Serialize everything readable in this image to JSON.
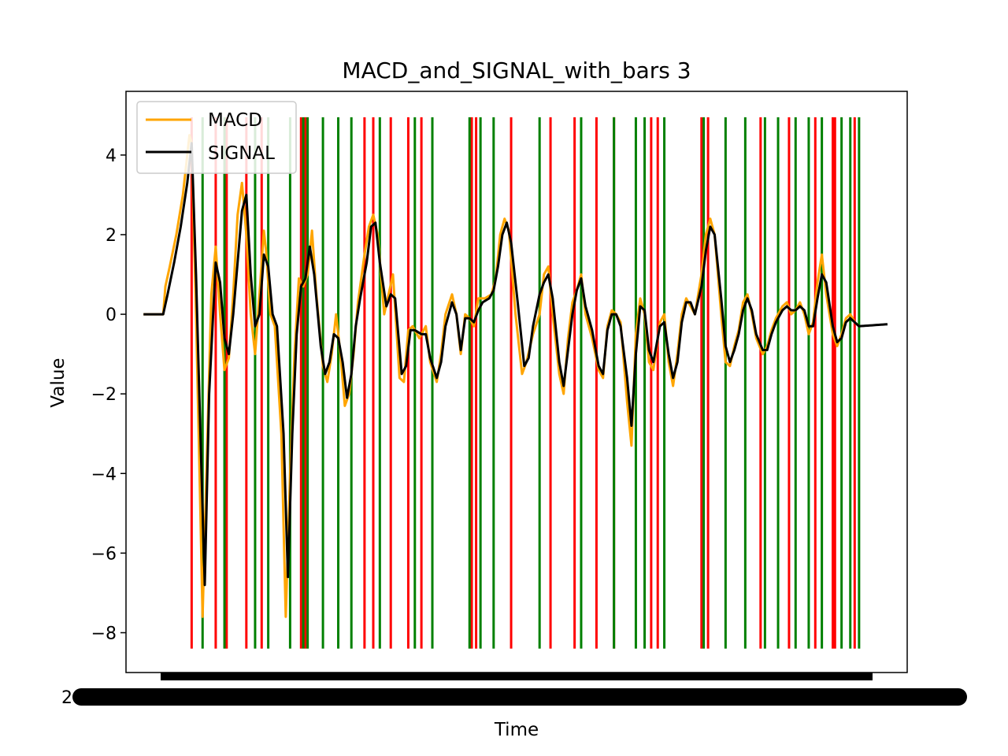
{
  "chart_data": {
    "type": "line",
    "title": "MACD_and_SIGNAL_with_bars 3",
    "xlabel": "Time",
    "ylabel": "Value",
    "ylim": [
      -9.0,
      5.6
    ],
    "xlim": [
      -8,
      349
    ],
    "yticks": [
      4,
      2,
      0,
      -2,
      -4,
      -6,
      -8
    ],
    "ytick_labels": [
      "4",
      "2",
      "0",
      "−2",
      "−4",
      "−6",
      "−8"
    ],
    "x_tick_labels_overlapping": true,
    "x_tick_stub": "2",
    "grid": false,
    "legend": {
      "position": "top-left",
      "entries": [
        {
          "label": "MACD",
          "color": "#FFA500"
        },
        {
          "label": "SIGNAL",
          "color": "#000000"
        }
      ]
    },
    "n_points": 341,
    "series": [
      {
        "name": "MACD",
        "color": "#FFA500",
        "keypoints": [
          [
            0,
            0
          ],
          [
            9,
            0
          ],
          [
            10,
            0.7
          ],
          [
            12,
            1.2
          ],
          [
            15,
            2
          ],
          [
            18,
            3
          ],
          [
            21,
            4.5
          ],
          [
            22,
            4.3
          ],
          [
            24,
            0
          ],
          [
            26,
            -5
          ],
          [
            27,
            -7.6
          ],
          [
            29,
            -3.5
          ],
          [
            31,
            0.5
          ],
          [
            33,
            1.7
          ],
          [
            35,
            0
          ],
          [
            37,
            -1.4
          ],
          [
            39,
            -1.1
          ],
          [
            41,
            0.5
          ],
          [
            43,
            2.5
          ],
          [
            45,
            3.3
          ],
          [
            47,
            2
          ],
          [
            49,
            0
          ],
          [
            51,
            -1
          ],
          [
            53,
            0.5
          ],
          [
            55,
            2.1
          ],
          [
            56,
            1.6
          ],
          [
            58,
            0
          ],
          [
            60,
            -0.3
          ],
          [
            63,
            -3
          ],
          [
            65,
            -7.6
          ],
          [
            67,
            -4
          ],
          [
            69,
            -1
          ],
          [
            71,
            0.9
          ],
          [
            73,
            0.7
          ],
          [
            75,
            1
          ],
          [
            77,
            2.1
          ],
          [
            79,
            0.5
          ],
          [
            82,
            -1.3
          ],
          [
            84,
            -1.7
          ],
          [
            86,
            -1
          ],
          [
            88,
            0
          ],
          [
            90,
            -1
          ],
          [
            92,
            -2.3
          ],
          [
            94,
            -2
          ],
          [
            96,
            -1
          ],
          [
            98,
            0.3
          ],
          [
            101,
            1.5
          ],
          [
            103,
            2.2
          ],
          [
            105,
            2.5
          ],
          [
            107,
            2
          ],
          [
            110,
            0
          ],
          [
            112,
            0.5
          ],
          [
            114,
            1
          ],
          [
            117,
            -1.6
          ],
          [
            119,
            -1.7
          ],
          [
            121,
            -0.4
          ],
          [
            123,
            -0.3
          ],
          [
            126,
            -0.6
          ],
          [
            129,
            -0.3
          ],
          [
            131,
            -1.2
          ],
          [
            134,
            -1.7
          ],
          [
            136,
            -1
          ],
          [
            138,
            0
          ],
          [
            141,
            0.5
          ],
          [
            143,
            0
          ],
          [
            145,
            -1
          ],
          [
            147,
            0
          ],
          [
            149,
            -0.1
          ],
          [
            151,
            -0.3
          ],
          [
            153,
            0.4
          ],
          [
            156,
            0.4
          ],
          [
            159,
            0.5
          ],
          [
            161,
            0.9
          ],
          [
            163,
            2
          ],
          [
            165,
            2.4
          ],
          [
            167,
            2.1
          ],
          [
            170,
            0
          ],
          [
            173,
            -1.5
          ],
          [
            175,
            -1.2
          ],
          [
            178,
            -0.5
          ],
          [
            181,
            0
          ],
          [
            183,
            1
          ],
          [
            185,
            1.2
          ],
          [
            187,
            0
          ],
          [
            190,
            -1.5
          ],
          [
            192,
            -2
          ],
          [
            194,
            -0.6
          ],
          [
            196,
            0.3
          ],
          [
            198,
            0.6
          ],
          [
            200,
            1
          ],
          [
            202,
            0
          ],
          [
            205,
            -0.6
          ],
          [
            208,
            -1.4
          ],
          [
            210,
            -1.6
          ],
          [
            212,
            -0.3
          ],
          [
            214,
            0.1
          ],
          [
            216,
            0
          ],
          [
            218,
            -0.2
          ],
          [
            221,
            -2.2
          ],
          [
            223,
            -3.3
          ],
          [
            225,
            -0.5
          ],
          [
            227,
            0.4
          ],
          [
            229,
            0
          ],
          [
            231,
            -1.2
          ],
          [
            233,
            -1.4
          ],
          [
            236,
            -0.2
          ],
          [
            238,
            0
          ],
          [
            240,
            -1.2
          ],
          [
            242,
            -1.8
          ],
          [
            244,
            -1
          ],
          [
            246,
            0
          ],
          [
            248,
            0.4
          ],
          [
            250,
            0.2
          ],
          [
            252,
            0
          ],
          [
            255,
            1
          ],
          [
            257,
            2
          ],
          [
            259,
            2.4
          ],
          [
            261,
            2
          ],
          [
            264,
            0
          ],
          [
            266,
            -1.2
          ],
          [
            268,
            -1.3
          ],
          [
            270,
            -0.8
          ],
          [
            272,
            -0.4
          ],
          [
            274,
            0.3
          ],
          [
            276,
            0.5
          ],
          [
            278,
            0
          ],
          [
            280,
            -0.6
          ],
          [
            283,
            -1
          ],
          [
            285,
            -0.8
          ],
          [
            287,
            -0.4
          ],
          [
            289,
            -0.1
          ],
          [
            292,
            0.2
          ],
          [
            294,
            0.3
          ],
          [
            296,
            0
          ],
          [
            298,
            0.1
          ],
          [
            300,
            0.3
          ],
          [
            302,
            0
          ],
          [
            304,
            -0.5
          ],
          [
            306,
            -0.2
          ],
          [
            308,
            0.8
          ],
          [
            310,
            1.5
          ],
          [
            312,
            0.5
          ],
          [
            315,
            -0.5
          ],
          [
            317,
            -0.8
          ],
          [
            319,
            -0.5
          ],
          [
            321,
            -0.1
          ],
          [
            323,
            0
          ],
          [
            325,
            -0.2
          ],
          [
            327,
            -0.3
          ]
        ]
      },
      {
        "name": "SIGNAL",
        "color": "#000000",
        "keypoints": [
          [
            0,
            0
          ],
          [
            9,
            0
          ],
          [
            11,
            0.5
          ],
          [
            14,
            1.3
          ],
          [
            17,
            2.2
          ],
          [
            20,
            3.3
          ],
          [
            22,
            4.3
          ],
          [
            24,
            1
          ],
          [
            26,
            -3
          ],
          [
            28,
            -6.8
          ],
          [
            30,
            -2
          ],
          [
            33,
            1.3
          ],
          [
            35,
            0.8
          ],
          [
            37,
            -0.6
          ],
          [
            39,
            -1
          ],
          [
            41,
            0
          ],
          [
            43,
            1.3
          ],
          [
            45,
            2.6
          ],
          [
            47,
            3
          ],
          [
            49,
            1
          ],
          [
            51,
            -0.3
          ],
          [
            53,
            0
          ],
          [
            55,
            1.5
          ],
          [
            57,
            1.2
          ],
          [
            59,
            0
          ],
          [
            61,
            -0.3
          ],
          [
            64,
            -3
          ],
          [
            66,
            -6.6
          ],
          [
            68,
            -3
          ],
          [
            70,
            -0.5
          ],
          [
            72,
            0.7
          ],
          [
            74,
            0.9
          ],
          [
            76,
            1.7
          ],
          [
            78,
            1
          ],
          [
            81,
            -0.8
          ],
          [
            83,
            -1.5
          ],
          [
            85,
            -1.2
          ],
          [
            87,
            -0.5
          ],
          [
            89,
            -0.6
          ],
          [
            91,
            -1.2
          ],
          [
            93,
            -2.1
          ],
          [
            95,
            -1.5
          ],
          [
            97,
            -0.3
          ],
          [
            99,
            0.4
          ],
          [
            102,
            1.3
          ],
          [
            104,
            2.2
          ],
          [
            106,
            2.3
          ],
          [
            108,
            1.3
          ],
          [
            111,
            0.2
          ],
          [
            113,
            0.5
          ],
          [
            115,
            0.4
          ],
          [
            118,
            -1.5
          ],
          [
            120,
            -1.3
          ],
          [
            122,
            -0.4
          ],
          [
            124,
            -0.4
          ],
          [
            127,
            -0.5
          ],
          [
            129,
            -0.5
          ],
          [
            131,
            -1.1
          ],
          [
            134,
            -1.6
          ],
          [
            136,
            -1.2
          ],
          [
            138,
            -0.3
          ],
          [
            141,
            0.3
          ],
          [
            143,
            0
          ],
          [
            145,
            -0.9
          ],
          [
            147,
            -0.1
          ],
          [
            149,
            -0.1
          ],
          [
            151,
            -0.2
          ],
          [
            153,
            0.1
          ],
          [
            155,
            0.3
          ],
          [
            158,
            0.4
          ],
          [
            160,
            0.6
          ],
          [
            162,
            1.2
          ],
          [
            164,
            2
          ],
          [
            166,
            2.3
          ],
          [
            168,
            1.8
          ],
          [
            171,
            0.3
          ],
          [
            174,
            -1.3
          ],
          [
            176,
            -1.1
          ],
          [
            178,
            -0.3
          ],
          [
            181,
            0.5
          ],
          [
            183,
            0.8
          ],
          [
            185,
            1
          ],
          [
            187,
            0.4
          ],
          [
            190,
            -1.2
          ],
          [
            192,
            -1.8
          ],
          [
            194,
            -0.9
          ],
          [
            196,
            0
          ],
          [
            198,
            0.6
          ],
          [
            200,
            0.9
          ],
          [
            202,
            0.2
          ],
          [
            205,
            -0.4
          ],
          [
            208,
            -1.3
          ],
          [
            210,
            -1.5
          ],
          [
            212,
            -0.4
          ],
          [
            214,
            0
          ],
          [
            216,
            0
          ],
          [
            218,
            -0.3
          ],
          [
            221,
            -1.6
          ],
          [
            223,
            -2.8
          ],
          [
            225,
            -1
          ],
          [
            227,
            0.2
          ],
          [
            229,
            0.1
          ],
          [
            231,
            -0.9
          ],
          [
            233,
            -1.2
          ],
          [
            236,
            -0.3
          ],
          [
            238,
            -0.2
          ],
          [
            240,
            -1
          ],
          [
            242,
            -1.6
          ],
          [
            244,
            -1.2
          ],
          [
            246,
            -0.2
          ],
          [
            248,
            0.3
          ],
          [
            250,
            0.3
          ],
          [
            252,
            0
          ],
          [
            255,
            0.7
          ],
          [
            257,
            1.6
          ],
          [
            259,
            2.2
          ],
          [
            261,
            2
          ],
          [
            264,
            0.4
          ],
          [
            266,
            -0.8
          ],
          [
            268,
            -1.2
          ],
          [
            270,
            -0.9
          ],
          [
            272,
            -0.5
          ],
          [
            274,
            0.1
          ],
          [
            276,
            0.4
          ],
          [
            278,
            0.1
          ],
          [
            280,
            -0.5
          ],
          [
            283,
            -0.9
          ],
          [
            285,
            -0.9
          ],
          [
            287,
            -0.5
          ],
          [
            289,
            -0.2
          ],
          [
            292,
            0.1
          ],
          [
            294,
            0.2
          ],
          [
            296,
            0.1
          ],
          [
            298,
            0.1
          ],
          [
            300,
            0.2
          ],
          [
            302,
            0.1
          ],
          [
            304,
            -0.3
          ],
          [
            306,
            -0.3
          ],
          [
            308,
            0.4
          ],
          [
            310,
            1
          ],
          [
            312,
            0.8
          ],
          [
            315,
            -0.3
          ],
          [
            317,
            -0.7
          ],
          [
            319,
            -0.6
          ],
          [
            321,
            -0.2
          ],
          [
            323,
            -0.1
          ],
          [
            325,
            -0.2
          ],
          [
            327,
            -0.3
          ],
          [
            340,
            -0.25
          ]
        ]
      }
    ],
    "vertical_bars": {
      "y_range": [
        -8.4,
        4.95
      ],
      "red": [
        22,
        33,
        38,
        47,
        54,
        72,
        74,
        101,
        105,
        113,
        121,
        127,
        150,
        152,
        168,
        186,
        197,
        207,
        215,
        232,
        235,
        255,
        258,
        282,
        295,
        307,
        315,
        316,
        325
      ],
      "green": [
        27,
        37,
        51,
        57,
        67,
        73,
        75,
        82,
        89,
        95,
        108,
        124,
        132,
        149,
        154,
        160,
        181,
        200,
        215,
        225,
        229,
        238,
        256,
        266,
        275,
        284,
        290,
        298,
        304,
        310,
        319,
        323,
        327
      ]
    }
  }
}
